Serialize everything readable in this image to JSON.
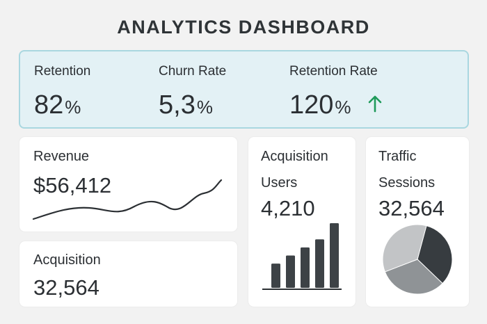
{
  "title": "ANALYTICS DASHBOARD",
  "kpis": {
    "retention": {
      "label": "Retention",
      "value": "82",
      "unit": "%"
    },
    "churn": {
      "label": "Churn Rate",
      "value": "5,3",
      "unit": "%"
    },
    "retention_rate": {
      "label": "Retention Rate",
      "value": "120",
      "unit": "%",
      "trend": "up",
      "trend_icon": "arrow-up-icon",
      "trend_color": "#1f9a5a"
    }
  },
  "revenue": {
    "label": "Revenue",
    "value": "$56,412"
  },
  "acquisition_summary": {
    "label": "Acquisition",
    "value": "32,564"
  },
  "acquisition_users": {
    "label": "Acquisition",
    "sublabel": "Users",
    "value": "4,210",
    "chart_data": {
      "type": "bar",
      "values": [
        3,
        4,
        5,
        6,
        8
      ],
      "ylim": [
        0,
        8
      ]
    }
  },
  "traffic": {
    "label": "Traffic",
    "sublabel": "Sessions",
    "value": "32,564",
    "chart_data": {
      "type": "pie",
      "values": [
        33,
        32,
        35
      ]
    }
  },
  "colors": {
    "accent_band": "#e3f1f5",
    "accent_border": "#a9d7e0",
    "trend_up": "#1f9a5a"
  }
}
